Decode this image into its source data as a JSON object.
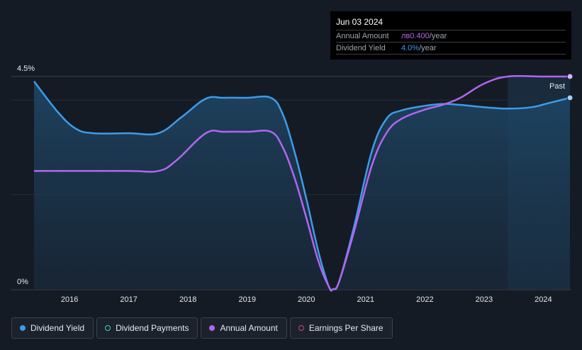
{
  "tooltip": {
    "date": "Jun 03 2024",
    "rows": [
      {
        "label": "Annual Amount",
        "value": "лв0.400",
        "unit": "/year"
      },
      {
        "label": "Dividend Yield",
        "value": "4.0%",
        "unit": "/year"
      }
    ]
  },
  "legend": {
    "items": [
      {
        "label": "Dividend Yield"
      },
      {
        "label": "Dividend Payments"
      },
      {
        "label": "Annual Amount"
      },
      {
        "label": "Earnings Per Share"
      }
    ]
  },
  "colors": {
    "dividend_yield": "#3d9ce9",
    "annual_amount": "#b365f0",
    "dividend_payments": "#46d3c5",
    "earnings_per_share": "#d1477f",
    "background": "#151b24"
  },
  "chart_data": {
    "type": "line",
    "y_tick_labels": [
      "4.5%",
      "0%"
    ],
    "x_tick_labels": [
      "2016",
      "2017",
      "2018",
      "2019",
      "2020",
      "2021",
      "2022",
      "2023",
      "2024"
    ],
    "past_label": "Past",
    "ylim": [
      0,
      4.5
    ],
    "xlim": [
      2015.4,
      2024.45
    ],
    "past_region_start": 2023.4,
    "series": [
      {
        "name": "Dividend Yield",
        "unit": "%",
        "points": [
          [
            2015.4,
            4.4
          ],
          [
            2015.8,
            3.75
          ],
          [
            2016.1,
            3.4
          ],
          [
            2016.4,
            3.3
          ],
          [
            2017.0,
            3.3
          ],
          [
            2017.5,
            3.3
          ],
          [
            2017.9,
            3.65
          ],
          [
            2018.3,
            4.03
          ],
          [
            2018.6,
            4.05
          ],
          [
            2019.0,
            4.05
          ],
          [
            2019.4,
            4.05
          ],
          [
            2019.6,
            3.7
          ],
          [
            2019.8,
            2.9
          ],
          [
            2020.0,
            1.9
          ],
          [
            2020.2,
            0.8
          ],
          [
            2020.38,
            0.05
          ],
          [
            2020.45,
            0.0
          ],
          [
            2020.55,
            0.15
          ],
          [
            2020.8,
            1.3
          ],
          [
            2021.1,
            2.9
          ],
          [
            2021.35,
            3.6
          ],
          [
            2021.6,
            3.78
          ],
          [
            2022.0,
            3.88
          ],
          [
            2022.3,
            3.92
          ],
          [
            2022.6,
            3.9
          ],
          [
            2023.0,
            3.85
          ],
          [
            2023.4,
            3.82
          ],
          [
            2023.8,
            3.85
          ],
          [
            2024.1,
            3.94
          ],
          [
            2024.45,
            4.05
          ]
        ]
      },
      {
        "name": "Annual Amount",
        "unit": "лв/year",
        "points": [
          [
            2015.4,
            2.5
          ],
          [
            2016.0,
            2.5
          ],
          [
            2017.0,
            2.5
          ],
          [
            2017.5,
            2.5
          ],
          [
            2017.8,
            2.72
          ],
          [
            2018.3,
            3.3
          ],
          [
            2018.6,
            3.33
          ],
          [
            2019.0,
            3.33
          ],
          [
            2019.4,
            3.33
          ],
          [
            2019.6,
            3.0
          ],
          [
            2019.8,
            2.35
          ],
          [
            2020.0,
            1.5
          ],
          [
            2020.2,
            0.6
          ],
          [
            2020.38,
            0.05
          ],
          [
            2020.45,
            0.0
          ],
          [
            2020.55,
            0.15
          ],
          [
            2020.8,
            1.2
          ],
          [
            2021.1,
            2.6
          ],
          [
            2021.35,
            3.3
          ],
          [
            2021.6,
            3.6
          ],
          [
            2022.0,
            3.8
          ],
          [
            2022.3,
            3.9
          ],
          [
            2022.6,
            4.05
          ],
          [
            2023.0,
            4.35
          ],
          [
            2023.4,
            4.5
          ],
          [
            2024.0,
            4.5
          ],
          [
            2024.45,
            4.5
          ]
        ]
      }
    ],
    "grid": true,
    "legend_position": "bottom-left"
  }
}
